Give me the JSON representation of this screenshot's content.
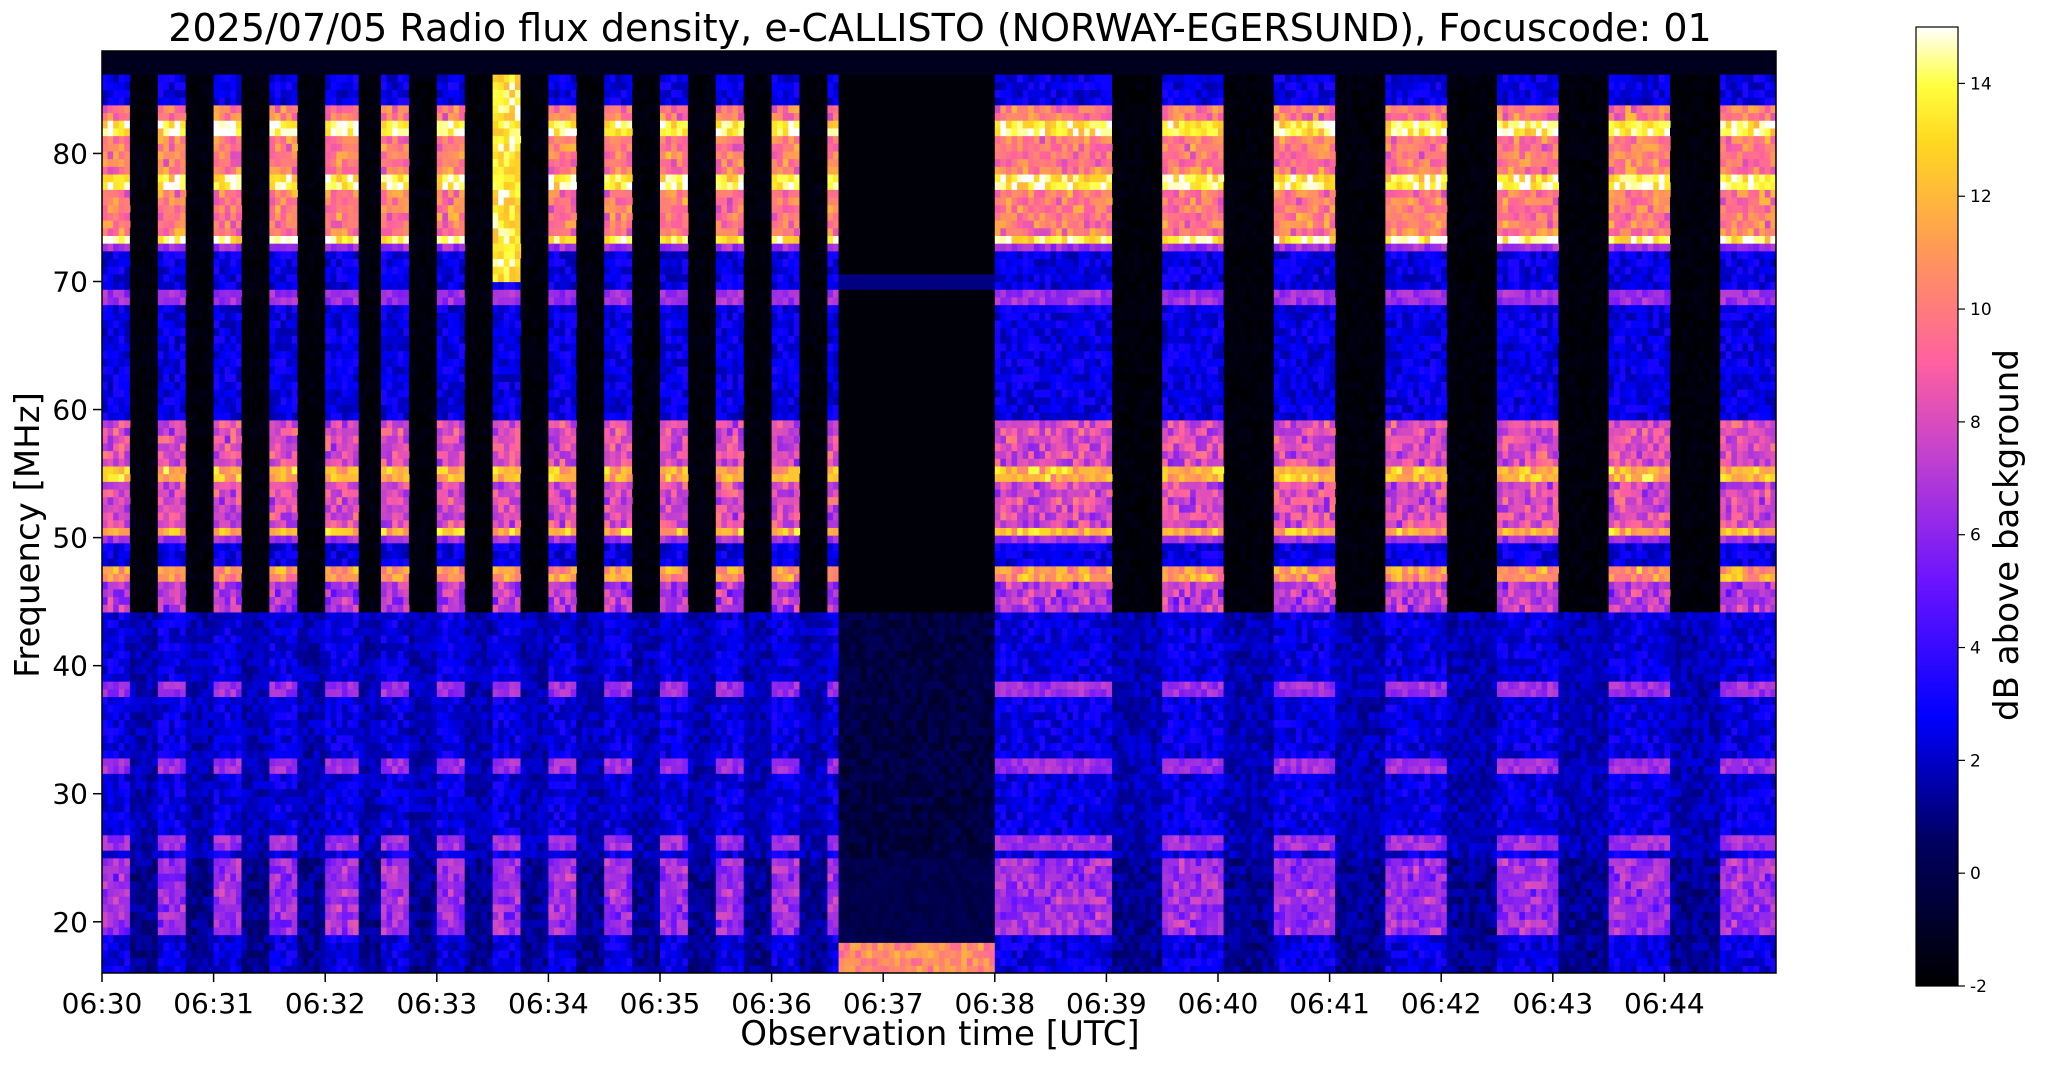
{
  "chart_data": {
    "type": "heatmap",
    "title": "2025/07/05  Radio flux density, e-CALLISTO (NORWAY-EGERSUND), Focuscode: 01",
    "xlabel": "Observation time [UTC]",
    "ylabel": "Frequency [MHz]",
    "x_ticks": [
      "06:30",
      "06:31",
      "06:32",
      "06:33",
      "06:34",
      "06:35",
      "06:36",
      "06:37",
      "06:38",
      "06:39",
      "06:40",
      "06:41",
      "06:42",
      "06:43",
      "06:44"
    ],
    "x_range_minutes": [
      0,
      15
    ],
    "y_ticks": [
      20,
      30,
      40,
      50,
      60,
      70,
      80
    ],
    "ylim": [
      16,
      88
    ],
    "colorbar": {
      "label": "dB above background",
      "ticks": [
        -2,
        0,
        2,
        4,
        6,
        8,
        10,
        12,
        14
      ],
      "range": [
        -2,
        15
      ],
      "colormap": "gnuplot2"
    },
    "bright_bands_MHz": [
      26,
      32,
      38,
      47,
      50,
      55,
      69,
      73,
      78,
      82
    ],
    "intermittent_columns_start_end_min": [
      [
        0,
        6.6
      ],
      [
        8.5,
        15
      ]
    ],
    "quiet_interval_min": [
      6.6,
      8.0
    ]
  }
}
